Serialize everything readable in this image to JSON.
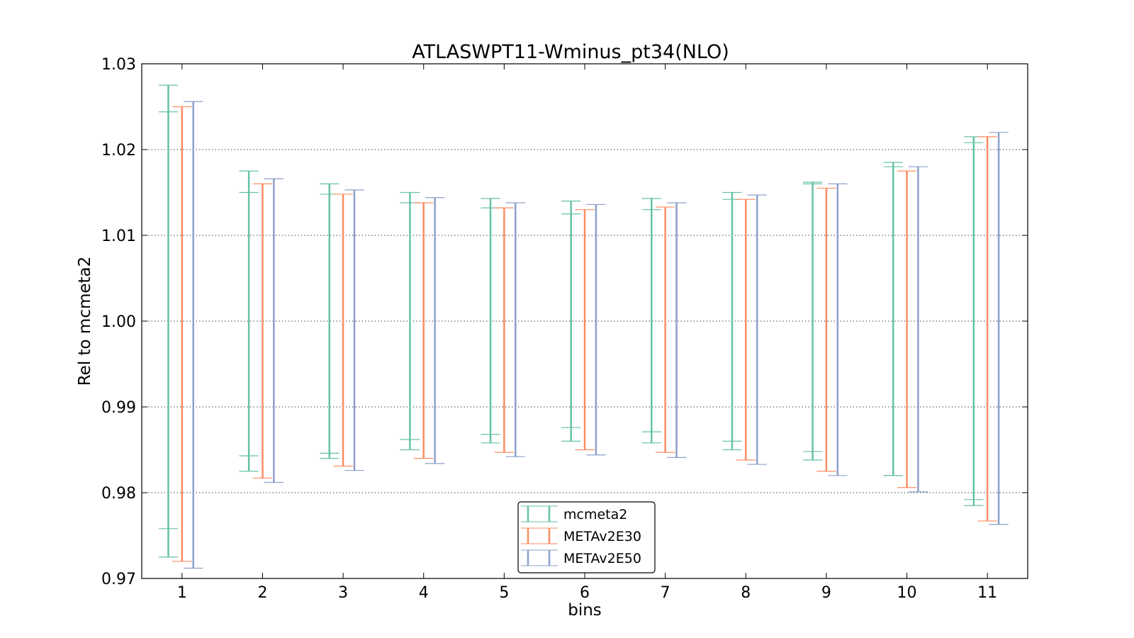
{
  "chart_data": {
    "type": "errorbar",
    "title": "ATLASWPT11-Wminus_pt34(NLO)",
    "xlabel": "bins",
    "ylabel": "Rel to mcmeta2",
    "categories": [
      "1",
      "2",
      "3",
      "4",
      "5",
      "6",
      "7",
      "8",
      "9",
      "10",
      "11"
    ],
    "xlim": [
      0.5,
      11.5
    ],
    "ylim": [
      0.97,
      1.03
    ],
    "yticks": [
      "0.97",
      "0.98",
      "0.99",
      "1.00",
      "1.01",
      "1.02",
      "1.03"
    ],
    "grid": "horizontal dotted",
    "legend_position": "lower center",
    "series": [
      {
        "name": "mcmeta2",
        "color": "#66c2a5",
        "upper": [
          1.0275,
          1.0175,
          1.016,
          1.015,
          1.0143,
          1.014,
          1.0143,
          1.015,
          1.0162,
          1.0185,
          1.0215
        ],
        "inner_upper": [
          1.0244,
          1.015,
          1.0148,
          1.0138,
          1.0132,
          1.0125,
          1.013,
          1.0142,
          1.016,
          1.018,
          1.0208
        ],
        "inner_lower": [
          0.9758,
          0.9843,
          0.9846,
          0.9862,
          0.9868,
          0.9876,
          0.9871,
          0.986,
          0.9848,
          0.982,
          0.9792
        ],
        "lower": [
          0.9725,
          0.9825,
          0.984,
          0.985,
          0.9858,
          0.986,
          0.9858,
          0.985,
          0.9838,
          0.982,
          0.9785
        ]
      },
      {
        "name": "METAv2E30",
        "color": "#fc8d62",
        "upper": [
          1.025,
          1.016,
          1.0148,
          1.0138,
          1.0132,
          1.013,
          1.0133,
          1.0142,
          1.0155,
          1.0175,
          1.0215
        ],
        "lower": [
          0.972,
          0.9817,
          0.9831,
          0.984,
          0.9847,
          0.985,
          0.9847,
          0.9838,
          0.9825,
          0.9806,
          0.9767
        ]
      },
      {
        "name": "METAv2E50",
        "color": "#8da0cb",
        "upper": [
          1.0256,
          1.0166,
          1.0153,
          1.0144,
          1.0138,
          1.0136,
          1.0138,
          1.0147,
          1.016,
          1.018,
          1.022
        ],
        "lower": [
          0.9712,
          0.9812,
          0.9826,
          0.9834,
          0.9842,
          0.9844,
          0.9841,
          0.9833,
          0.982,
          0.9801,
          0.9763
        ]
      }
    ]
  }
}
